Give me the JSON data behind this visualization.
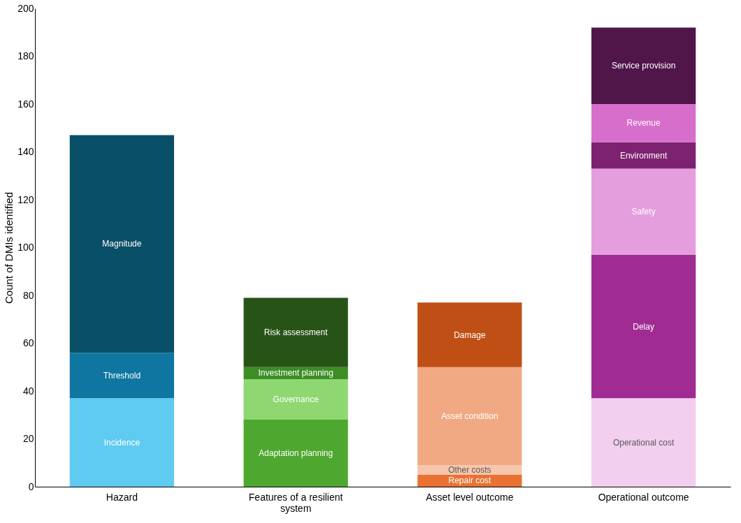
{
  "chart_data": {
    "type": "bar",
    "stacked": true,
    "ylabel": "Count of DMIs identified",
    "categories": [
      "Hazard",
      "Features of a resilient system",
      "Asset level outcome",
      "Operational outcome"
    ],
    "ylim": [
      0,
      200
    ],
    "yticks": [
      0,
      20,
      40,
      60,
      80,
      100,
      120,
      140,
      160,
      180,
      200
    ],
    "grid": false,
    "legend": false,
    "series": [
      {
        "name": "Incidence",
        "color": "#5fcbf1",
        "values": [
          37,
          null,
          null,
          null
        ]
      },
      {
        "name": "Threshold",
        "color": "#0e76a0",
        "values": [
          19,
          null,
          null,
          null
        ]
      },
      {
        "name": "Magnitude",
        "color": "#0a4f68",
        "values": [
          91,
          null,
          null,
          null
        ]
      },
      {
        "name": "Adaptation planning",
        "color": "#4ea72e",
        "values": [
          null,
          28,
          null,
          null
        ]
      },
      {
        "name": "Governance",
        "color": "#8fd771",
        "values": [
          null,
          17,
          null,
          null
        ]
      },
      {
        "name": "Investment planning",
        "color": "#3c8d26",
        "values": [
          null,
          5,
          null,
          null
        ]
      },
      {
        "name": "Risk assessment",
        "color": "#275317",
        "values": [
          null,
          29,
          null,
          null
        ]
      },
      {
        "name": "Repair cost",
        "color": "#e97132",
        "values": [
          null,
          null,
          5,
          null
        ]
      },
      {
        "name": "Other costs",
        "color": "#f6c6ad",
        "values": [
          null,
          null,
          4,
          null
        ]
      },
      {
        "name": "Asset condition",
        "color": "#f1a983",
        "values": [
          null,
          null,
          41,
          null
        ]
      },
      {
        "name": "Damage",
        "color": "#c04f15",
        "values": [
          null,
          null,
          27,
          null
        ]
      },
      {
        "name": "Operational cost",
        "color": "#f2ceef",
        "values": [
          null,
          null,
          null,
          37
        ]
      },
      {
        "name": "Delay",
        "color": "#a02b93",
        "values": [
          null,
          null,
          null,
          60
        ]
      },
      {
        "name": "Safety",
        "color": "#e59edd",
        "values": [
          null,
          null,
          null,
          36
        ]
      },
      {
        "name": "Environment",
        "color": "#7d2270",
        "values": [
          null,
          null,
          null,
          11
        ]
      },
      {
        "name": "Revenue",
        "color": "#d86ecc",
        "values": [
          null,
          null,
          null,
          16
        ]
      },
      {
        "name": "Service provision",
        "color": "#501549",
        "values": [
          null,
          null,
          null,
          32
        ]
      }
    ]
  }
}
